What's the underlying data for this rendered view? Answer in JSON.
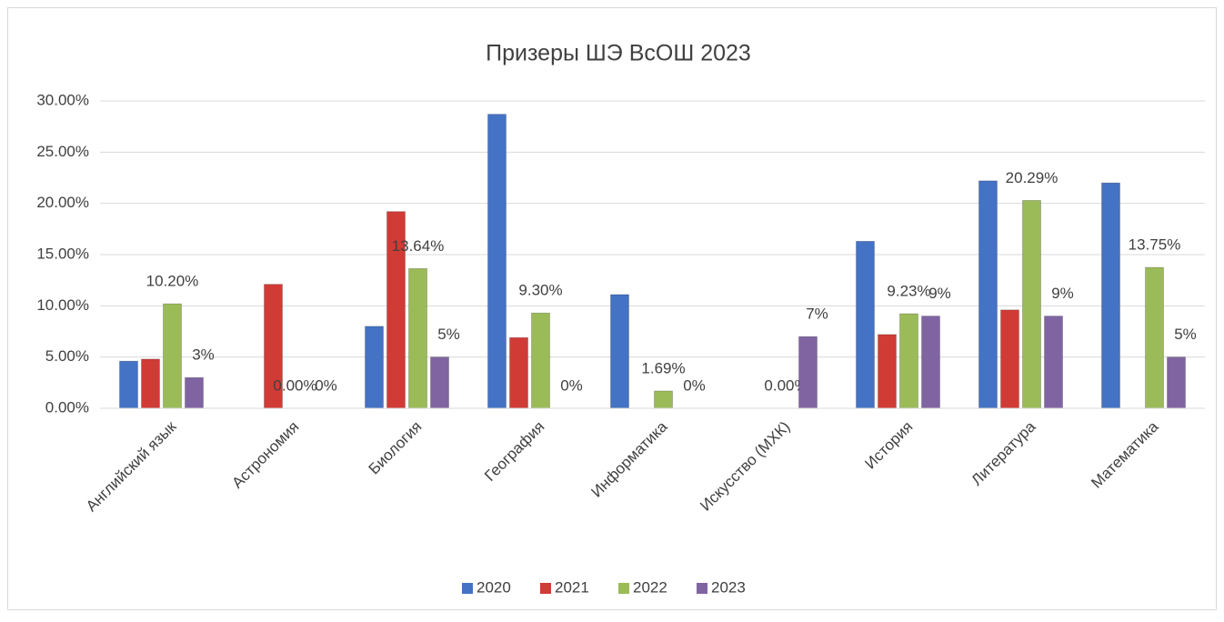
{
  "chart_data": {
    "type": "bar",
    "title": "Призеры ШЭ ВсОШ 2023",
    "categories": [
      "Английский язык",
      "Астрономия",
      "Биология",
      "География",
      "Информатика",
      "Искусство (МХК)",
      "История",
      "Литература",
      "Математика"
    ],
    "series": [
      {
        "name": "2020",
        "color": "#4472c4",
        "values": [
          4.6,
          0,
          8.0,
          28.7,
          11.1,
          0,
          16.3,
          22.2,
          22.0
        ]
      },
      {
        "name": "2021",
        "color": "#d13b36",
        "values": [
          4.8,
          12.1,
          19.2,
          6.9,
          0,
          0,
          7.2,
          9.6,
          0
        ]
      },
      {
        "name": "2022",
        "color": "#9bbb59",
        "values": [
          10.2,
          0,
          13.64,
          9.3,
          1.69,
          0,
          9.23,
          20.29,
          13.75
        ],
        "value_labels": [
          "10.20%",
          "0.00%",
          "13.64%",
          "9.30%",
          "1.69%",
          "0.00%",
          "9.23%",
          "20.29%",
          "13.75%"
        ]
      },
      {
        "name": "2023",
        "color": "#8064a2",
        "values": [
          3,
          0,
          5,
          0,
          0,
          7,
          9,
          9,
          5
        ],
        "value_labels": [
          "3%",
          "0%",
          "5%",
          "0%",
          "0%",
          "7%",
          "9%",
          "9%",
          "5%"
        ]
      }
    ],
    "ylim": [
      0,
      30
    ],
    "yticks": [
      {
        "value": 0,
        "label": "0.00%"
      },
      {
        "value": 5,
        "label": "5.00%"
      },
      {
        "value": 10,
        "label": "10.00%"
      },
      {
        "value": 15,
        "label": "15.00%"
      },
      {
        "value": 20,
        "label": "20.00%"
      },
      {
        "value": 25,
        "label": "25.00%"
      },
      {
        "value": 30,
        "label": "30.00%"
      }
    ],
    "grid": true,
    "legend": "bottom"
  }
}
